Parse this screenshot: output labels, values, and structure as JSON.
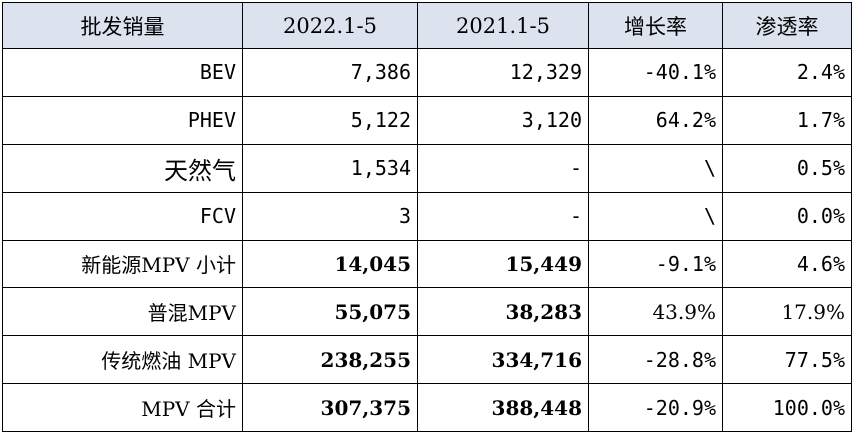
{
  "table": {
    "headers": [
      "批发销量",
      "2022.1-5",
      "2021.1-5",
      "增长率",
      "渗透率"
    ],
    "rows": [
      [
        "BEV",
        "7,386",
        "12,329",
        "-40.1%",
        "2.4%"
      ],
      [
        "PHEV",
        "5,122",
        "3,120",
        "64.2%",
        "1.7%"
      ],
      [
        "天然气",
        "1,534",
        "-",
        "\\",
        "0.5%"
      ],
      [
        "FCV",
        "3",
        "-",
        "\\",
        "0.0%"
      ],
      [
        "新能源MPV 小计",
        "14,045",
        "15,449",
        "-9.1%",
        "4.6%"
      ],
      [
        "普混MPV",
        "55,075",
        "38,283",
        "43.9%",
        "17.9%"
      ],
      [
        "传统燃油 MPV",
        "238,255",
        "334,716",
        "-28.8%",
        "77.5%"
      ],
      [
        "MPV 合计",
        "307,375",
        "388,448",
        "-20.9%",
        "100.0%"
      ]
    ]
  }
}
